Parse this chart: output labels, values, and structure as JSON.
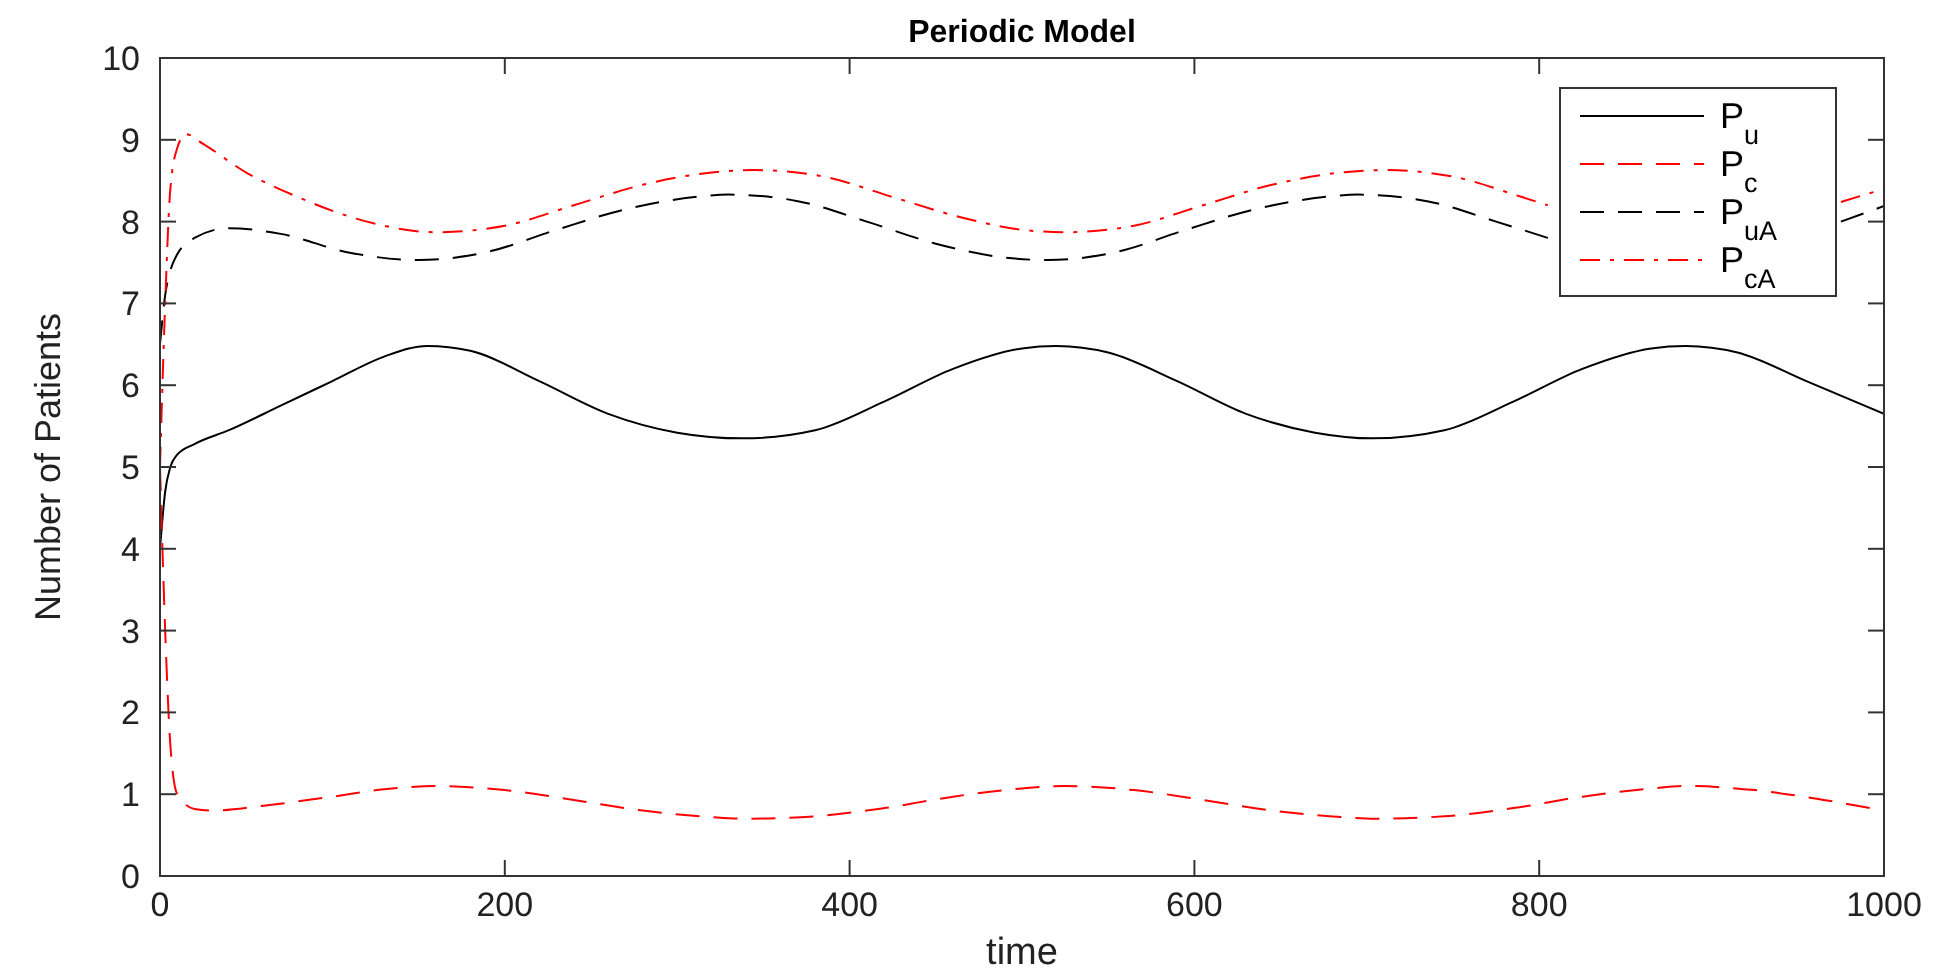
{
  "chart_data": {
    "type": "line",
    "title": "Periodic Model",
    "xlabel": "time",
    "ylabel": "Number of Patients",
    "xlim": [
      0,
      1000
    ],
    "ylim": [
      0,
      10
    ],
    "xticks": [
      0,
      200,
      400,
      600,
      800,
      1000
    ],
    "yticks": [
      0,
      1,
      2,
      3,
      4,
      5,
      6,
      7,
      8,
      9,
      10
    ],
    "grid": false,
    "legend": "top right",
    "marker": "none",
    "series": [
      {
        "name": "P$_{u}$",
        "color": "#000000",
        "line_style": "solid",
        "x": [
          0,
          3,
          6,
          10,
          20,
          40,
          70,
          100,
          130,
          155,
          180,
          220,
          260,
          300,
          338,
          380,
          420,
          460,
          500,
          520,
          550,
          590,
          630,
          670,
          703,
          745,
          785,
          825,
          865,
          885,
          915,
          955,
          1000
        ],
        "values": [
          4,
          4.7,
          5.0,
          5.15,
          5.28,
          5.45,
          5.75,
          6.05,
          6.35,
          6.48,
          6.42,
          6.05,
          5.65,
          5.42,
          5.35,
          5.45,
          5.8,
          6.2,
          6.45,
          6.48,
          6.4,
          6.05,
          5.65,
          5.42,
          5.35,
          5.45,
          5.8,
          6.2,
          6.45,
          6.48,
          6.4,
          6.05,
          5.65
        ]
      },
      {
        "name": "P$_{c}$",
        "color": "#ff0000",
        "line_style": "dashed",
        "x": [
          0,
          3,
          6,
          10,
          20,
          30,
          60,
          100,
          130,
          160,
          200,
          240,
          280,
          320,
          340,
          380,
          420,
          460,
          500,
          525,
          565,
          605,
          645,
          685,
          705,
          745,
          785,
          825,
          865,
          885,
          925,
          965,
          1000
        ],
        "values": [
          5,
          3,
          1.6,
          1.0,
          0.82,
          0.8,
          0.86,
          0.97,
          1.06,
          1.1,
          1.05,
          0.93,
          0.8,
          0.72,
          0.7,
          0.73,
          0.83,
          0.97,
          1.07,
          1.1,
          1.05,
          0.93,
          0.8,
          0.72,
          0.7,
          0.73,
          0.83,
          0.97,
          1.07,
          1.1,
          1.05,
          0.93,
          0.8
        ]
      },
      {
        "name": "P$_{uA}$",
        "color": "#000000",
        "line_style": "dashed",
        "x": [
          0,
          3,
          6,
          10,
          20,
          40,
          70,
          110,
          150,
          190,
          230,
          270,
          310,
          330,
          370,
          410,
          450,
          490,
          515,
          555,
          595,
          635,
          675,
          695,
          735,
          775,
          805,
          815,
          855,
          880,
          920,
          960,
          975,
          1000
        ],
        "values": [
          6.5,
          7.1,
          7.4,
          7.6,
          7.8,
          7.92,
          7.85,
          7.62,
          7.53,
          7.63,
          7.9,
          8.15,
          8.3,
          8.33,
          8.25,
          8.0,
          7.73,
          7.56,
          7.53,
          7.63,
          7.9,
          8.15,
          8.3,
          8.33,
          8.25,
          8.0,
          7.8,
          null,
          null,
          null,
          null,
          null,
          8.0,
          8.19
        ]
      },
      {
        "name": "P$_{cA}$",
        "color": "#ff0000",
        "line_style": "dashdot",
        "x": [
          0,
          3,
          6,
          10,
          15,
          25,
          50,
          80,
          120,
          160,
          200,
          240,
          280,
          320,
          345,
          385,
          425,
          465,
          500,
          525,
          565,
          605,
          645,
          685,
          710,
          750,
          790,
          805,
          830,
          865,
          890,
          930,
          970,
          975,
          1000
        ],
        "values": [
          5,
          7,
          8.4,
          8.9,
          9.07,
          8.95,
          8.6,
          8.3,
          8.0,
          7.87,
          7.95,
          8.2,
          8.45,
          8.6,
          8.63,
          8.55,
          8.3,
          8.05,
          7.9,
          7.87,
          7.95,
          8.2,
          8.45,
          8.6,
          8.63,
          8.55,
          8.3,
          8.2,
          null,
          null,
          null,
          null,
          null,
          8.24,
          8.4
        ]
      }
    ]
  }
}
